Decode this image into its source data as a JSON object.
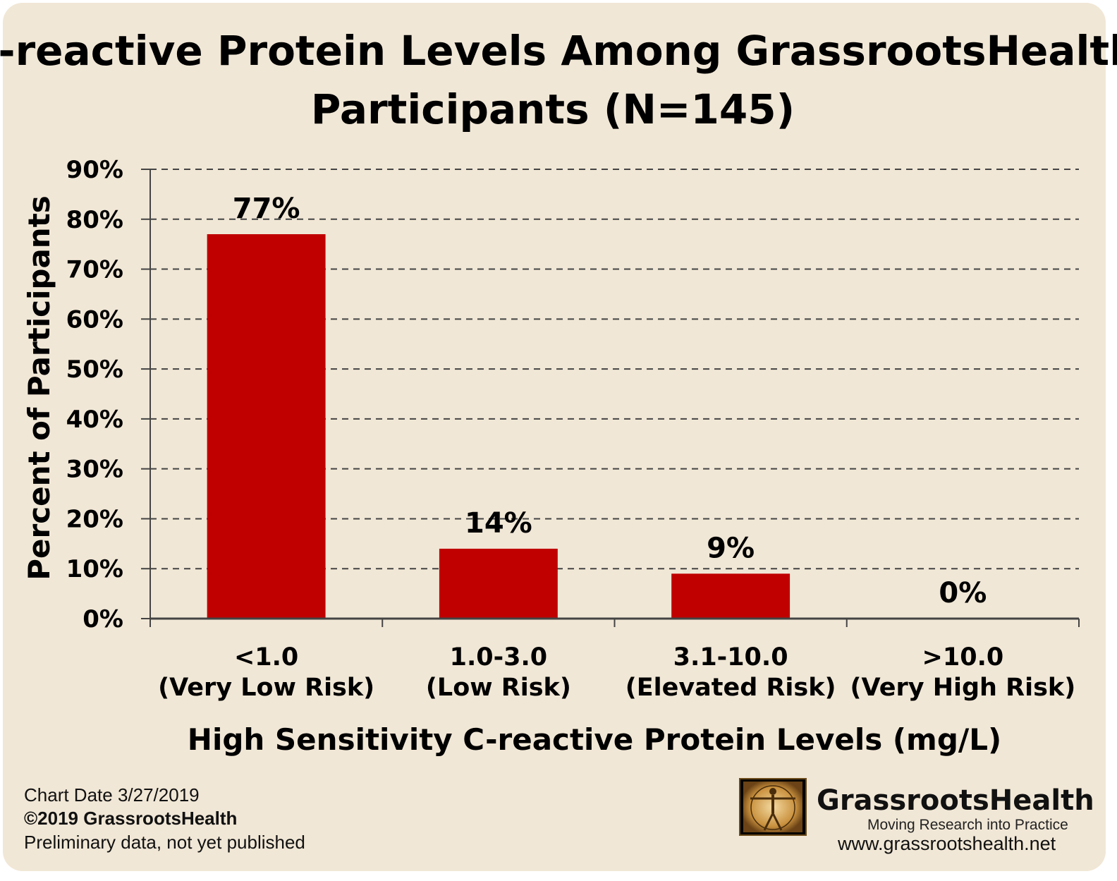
{
  "chart_data": {
    "type": "bar",
    "title_lines": [
      "C-reactive Protein Levels Among GrassrootsHealth",
      "Participants (N=145)"
    ],
    "categories": [
      [
        "<1.0",
        "(Very Low Risk)"
      ],
      [
        "1.0-3.0",
        "(Low Risk)"
      ],
      [
        "3.1-10.0",
        "(Elevated Risk)"
      ],
      [
        ">10.0",
        "(Very High Risk)"
      ]
    ],
    "values": [
      77,
      14,
      9,
      0
    ],
    "data_labels": [
      "77%",
      "14%",
      "9%",
      "0%"
    ],
    "xlabel": "High Sensitivity C-reactive Protein Levels (mg/L)",
    "ylabel": "Percent of Participants",
    "ylim": [
      0,
      90
    ],
    "yticks": [
      "0%",
      "10%",
      "20%",
      "30%",
      "40%",
      "50%",
      "60%",
      "70%",
      "80%",
      "90%"
    ],
    "grid": "horizontal-dashed",
    "bar_color": "#c00000"
  },
  "footer": {
    "chart_date": "Chart Date 3/27/2019",
    "copyright": "©2019 GrassrootsHealth",
    "note": "Preliminary data, not yet published"
  },
  "brand": {
    "name": "GrassrootsHealth",
    "tagline": "Moving Research into Practice",
    "url": "www.grassrootshealth.net",
    "logo_icon": "vitruvian-man-icon"
  }
}
